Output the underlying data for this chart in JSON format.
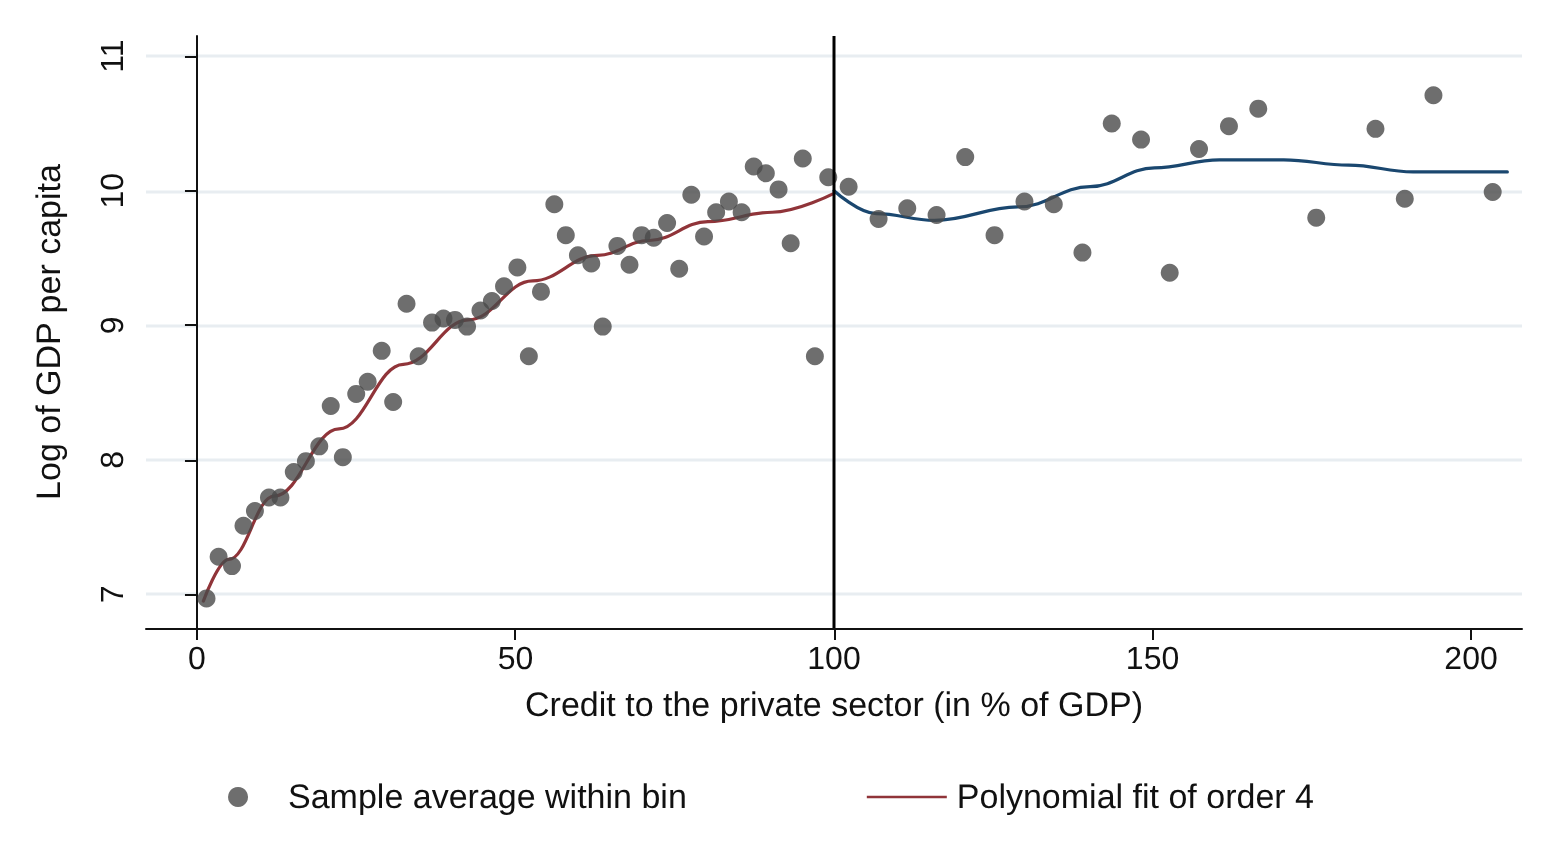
{
  "chart_data": {
    "type": "scatter",
    "xlabel": "Credit to the private sector (in % of GDP)",
    "ylabel": "Log of GDP per capita",
    "xlim": [
      -8,
      208
    ],
    "xticks": [
      0,
      50,
      100,
      150,
      200
    ],
    "ylim": [
      6.75,
      11.15
    ],
    "yticks": [
      7,
      8,
      9,
      10,
      11
    ],
    "grid": "y",
    "legend": "bottom",
    "ref_lines": [
      {
        "axis": "x",
        "value": 100,
        "color": "#000000"
      }
    ],
    "series": [
      {
        "name": "Sample average within bin",
        "marker": "circle",
        "color": "#4a4a4a",
        "x": [
          1.5,
          3.4,
          5.5,
          7.3,
          9.1,
          11.3,
          13.1,
          15.2,
          17.1,
          19.2,
          21,
          22.9,
          25,
          26.8,
          29,
          30.8,
          32.9,
          34.8,
          36.9,
          38.7,
          40.5,
          42.4,
          44.5,
          46.3,
          48.2,
          50.3,
          52.1,
          54,
          56.1,
          57.9,
          59.8,
          61.9,
          63.7,
          66,
          67.9,
          69.8,
          71.7,
          73.8,
          75.7,
          77.6,
          79.6,
          81.5,
          83.5,
          85.5,
          87.4,
          89.3,
          91.3,
          93.2,
          95.1,
          97,
          99.1,
          102.3,
          107,
          111.5,
          116.1,
          120.6,
          125.2,
          129.9,
          134.5,
          139,
          143.6,
          148.2,
          152.7,
          157.3,
          162,
          166.6,
          175.7,
          185,
          189.6,
          194.1,
          203.4
        ],
        "values": [
          6.97,
          7.28,
          7.21,
          7.51,
          7.62,
          7.72,
          7.72,
          7.91,
          7.99,
          8.1,
          8.4,
          8.02,
          8.49,
          8.58,
          8.81,
          8.43,
          9.16,
          8.77,
          9.02,
          9.05,
          9.04,
          8.99,
          9.11,
          9.18,
          9.29,
          9.43,
          8.77,
          9.25,
          9.9,
          9.67,
          9.52,
          9.46,
          8.99,
          9.59,
          9.45,
          9.67,
          9.65,
          9.76,
          9.42,
          9.97,
          9.66,
          9.84,
          9.92,
          9.84,
          10.18,
          10.13,
          10.01,
          9.61,
          10.24,
          8.77,
          10.1,
          10.03,
          9.79,
          9.87,
          9.82,
          10.25,
          9.67,
          9.92,
          9.9,
          9.54,
          10.5,
          10.38,
          9.39,
          10.31,
          10.48,
          10.61,
          9.8,
          10.46,
          9.94,
          10.71,
          9.99
        ]
      },
      {
        "name": "Polynomial fit of order 4",
        "type": "line",
        "marker": "none",
        "line_style": "solid",
        "color": "#903439",
        "x": [
          1,
          5,
          12.1,
          22.3,
          32.4,
          42.6,
          52.7,
          62.9,
          71,
          80.2,
          90.3,
          100
        ],
        "values": [
          6.95,
          7.26,
          7.73,
          8.23,
          8.71,
          9.04,
          9.33,
          9.52,
          9.63,
          9.77,
          9.84,
          9.98
        ]
      },
      {
        "type": "line",
        "marker": "none",
        "line_style": "solid",
        "color": "#1a476f",
        "x": [
          100,
          106.6,
          115.8,
          129,
          140.2,
          150.3,
          160.5,
          170.6,
          180.8,
          190.9,
          205.7
        ],
        "values": [
          10,
          9.83,
          9.78,
          9.88,
          10.03,
          10.17,
          10.23,
          10.23,
          10.19,
          10.14,
          10.14
        ]
      }
    ]
  }
}
